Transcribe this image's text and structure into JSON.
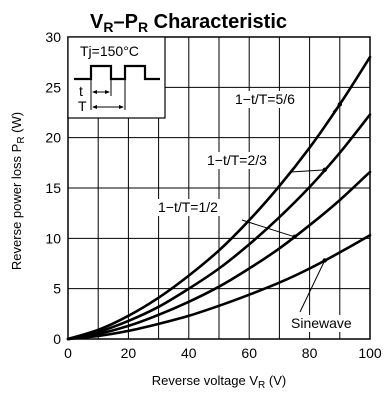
{
  "chart_data": {
    "type": "line",
    "title": "V",
    "title_sub_v": "R",
    "title_dash": "–P",
    "title_sub_p": "R",
    "title_tail": " Characteristic",
    "xlabel": "Reverse voltage  V",
    "xlabel_sub": "R",
    "xlabel_unit": " (V)",
    "ylabel": "Reverse power loss  P",
    "ylabel_sub": "R",
    "ylabel_unit": " (W)",
    "xlim": [
      0,
      100
    ],
    "ylim": [
      0,
      30
    ],
    "x_ticks": [
      0,
      20,
      40,
      60,
      80,
      100
    ],
    "y_ticks": [
      0,
      5,
      10,
      15,
      20,
      25,
      30
    ],
    "x_grid": [
      0,
      10,
      20,
      30,
      40,
      50,
      60,
      70,
      80,
      90,
      100
    ],
    "y_grid": [
      0,
      5,
      10,
      15,
      20,
      25,
      30
    ],
    "grid": true,
    "series": [
      {
        "name": "1−t/T=5/6",
        "x": [
          0,
          10,
          20,
          30,
          40,
          50,
          60,
          70,
          80,
          90,
          100
        ],
        "y": [
          0,
          0.9,
          2.3,
          4.1,
          6.3,
          8.8,
          11.8,
          15.2,
          19.0,
          23.3,
          28.0
        ]
      },
      {
        "name": "1−t/T=2/3",
        "x": [
          0,
          10,
          20,
          30,
          40,
          50,
          60,
          70,
          80,
          90,
          100
        ],
        "y": [
          0,
          0.7,
          1.8,
          3.2,
          5.0,
          7.0,
          9.4,
          12.1,
          15.1,
          18.5,
          22.3
        ]
      },
      {
        "name": "1−t/T=1/2",
        "x": [
          0,
          10,
          20,
          30,
          40,
          50,
          60,
          70,
          80,
          90,
          100
        ],
        "y": [
          0,
          0.5,
          1.3,
          2.4,
          3.7,
          5.2,
          7.0,
          9.0,
          11.3,
          13.8,
          16.6
        ]
      },
      {
        "name": "Sinewave",
        "x": [
          0,
          10,
          20,
          30,
          40,
          50,
          60,
          70,
          80,
          90,
          100
        ],
        "y": [
          0,
          0.3,
          0.8,
          1.5,
          2.3,
          3.3,
          4.4,
          5.6,
          7.0,
          8.6,
          10.3
        ]
      }
    ],
    "annotations": [
      {
        "series": 0,
        "text": "1−t/T=5/6",
        "at_x": 90
      },
      {
        "series": 1,
        "text": "1−t/T=2/3",
        "at_x": 85
      },
      {
        "series": 2,
        "text": "1−t/T=1/2",
        "at_x": 75
      },
      {
        "series": 3,
        "text": "Sinewave",
        "at_x": 85
      }
    ],
    "inset": {
      "tj_label": "Tj=150°C",
      "t_label": "t",
      "T_label": "T"
    }
  }
}
